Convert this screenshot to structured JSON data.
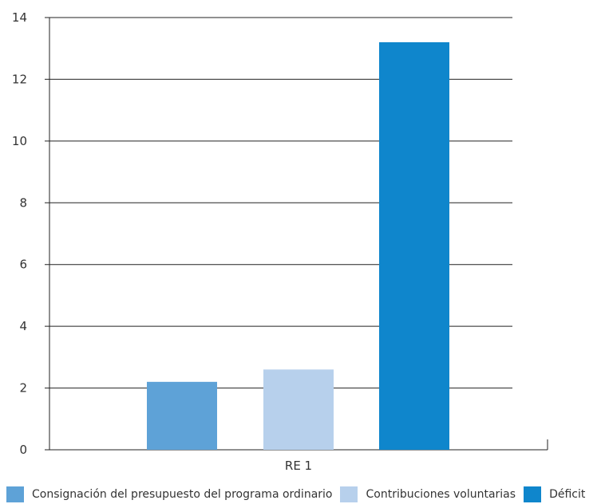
{
  "chart_data": {
    "type": "bar",
    "categories": [
      "RE 1"
    ],
    "series": [
      {
        "name": "Consignación del presupuesto del programa ordinario",
        "values": [
          2.2
        ],
        "color": "#5ea2d7"
      },
      {
        "name": "Contribuciones voluntarias",
        "values": [
          2.6
        ],
        "color": "#b7d0ec"
      },
      {
        "name": "Déficit",
        "values": [
          13.2
        ],
        "color": "#0f86cc"
      }
    ],
    "ylim": [
      0,
      14
    ],
    "yticks": [
      "0",
      "2",
      "4",
      "6",
      "8",
      "10",
      "12",
      "14"
    ],
    "grid": true,
    "legend_position": "bottom",
    "title": "",
    "xlabel": "",
    "ylabel": ""
  }
}
